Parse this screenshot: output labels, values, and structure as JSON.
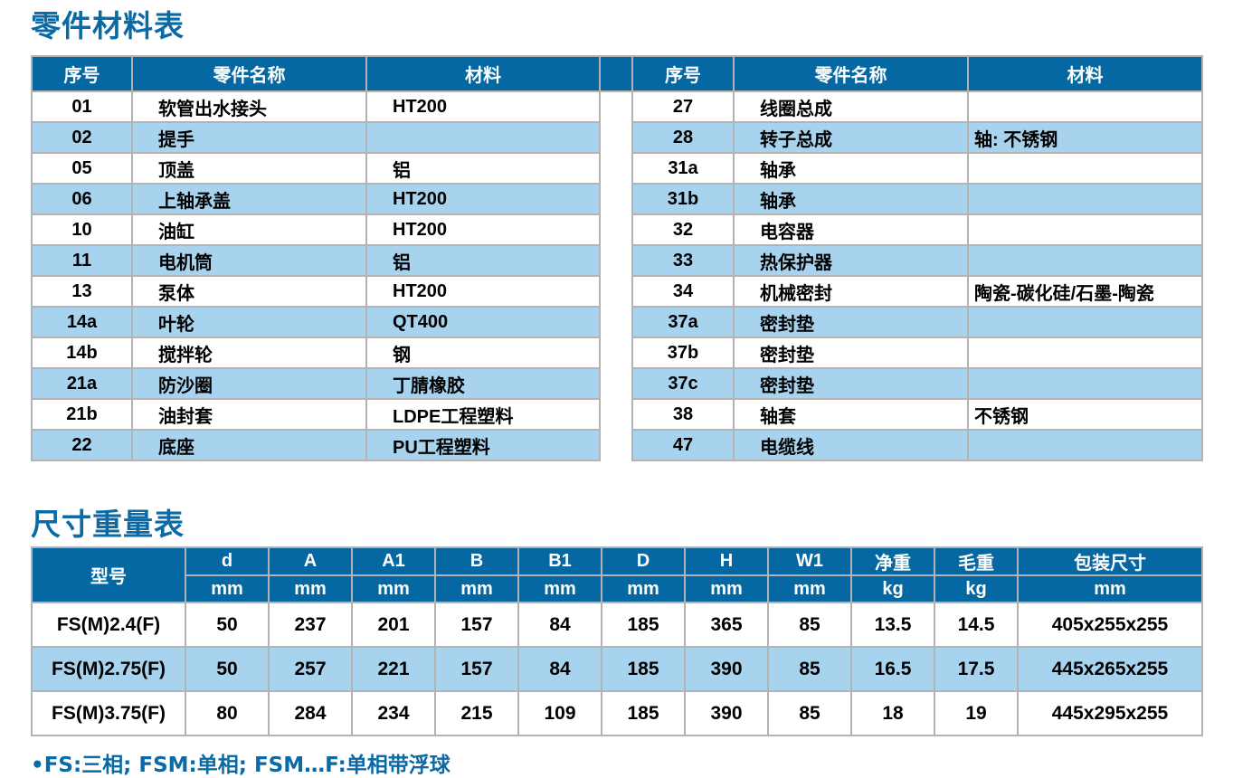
{
  "parts_title": "零件材料表",
  "parts_headers": [
    "序号",
    "零件名称",
    "材料"
  ],
  "parts_left": [
    [
      "01",
      "软管出水接头",
      "HT200"
    ],
    [
      "02",
      "提手",
      ""
    ],
    [
      "05",
      "顶盖",
      "铝"
    ],
    [
      "06",
      "上轴承盖",
      "HT200"
    ],
    [
      "10",
      "油缸",
      "HT200"
    ],
    [
      "11",
      "电机筒",
      "铝"
    ],
    [
      "13",
      "泵体",
      "HT200"
    ],
    [
      "14a",
      "叶轮",
      "QT400"
    ],
    [
      "14b",
      "搅拌轮",
      "钢"
    ],
    [
      "21a",
      "防沙圈",
      "丁腈橡胶"
    ],
    [
      "21b",
      "油封套",
      "LDPE工程塑料"
    ],
    [
      "22",
      "底座",
      "PU工程塑料"
    ]
  ],
  "parts_right": [
    [
      "27",
      "线圈总成",
      ""
    ],
    [
      "28",
      "转子总成",
      "轴: 不锈钢"
    ],
    [
      "31a",
      "轴承",
      ""
    ],
    [
      "31b",
      "轴承",
      ""
    ],
    [
      "32",
      "电容器",
      ""
    ],
    [
      "33",
      "热保护器",
      ""
    ],
    [
      "34",
      "机械密封",
      "陶瓷-碳化硅/石墨-陶瓷"
    ],
    [
      "37a",
      "密封垫",
      ""
    ],
    [
      "37b",
      "密封垫",
      ""
    ],
    [
      "37c",
      "密封垫",
      ""
    ],
    [
      "38",
      "轴套",
      "不锈钢"
    ],
    [
      "47",
      "电缆线",
      ""
    ]
  ],
  "dims_title": "尺寸重量表",
  "dims_model_header": "型号",
  "dims_headers": [
    "d",
    "A",
    "A1",
    "B",
    "B1",
    "D",
    "H",
    "W1",
    "净重",
    "毛重",
    "包装尺寸"
  ],
  "dims_units": [
    "mm",
    "mm",
    "mm",
    "mm",
    "mm",
    "mm",
    "mm",
    "mm",
    "kg",
    "kg",
    "mm"
  ],
  "dims_rows": [
    [
      "FS(M)2.4(F)",
      "50",
      "237",
      "201",
      "157",
      "84",
      "185",
      "365",
      "85",
      "13.5",
      "14.5",
      "405x255x255"
    ],
    [
      "FS(M)2.75(F)",
      "50",
      "257",
      "221",
      "157",
      "84",
      "185",
      "390",
      "85",
      "16.5",
      "17.5",
      "445x265x255"
    ],
    [
      "FS(M)3.75(F)",
      "80",
      "284",
      "234",
      "215",
      "109",
      "185",
      "390",
      "85",
      "18",
      "19",
      "445x295x255"
    ]
  ],
  "note": "•FS:三相; FSM:单相; FSM…F:单相带浮球",
  "colors": {
    "header": "#0568a2",
    "alt_row": "#a8d3ee",
    "title": "#0a6aa6"
  }
}
